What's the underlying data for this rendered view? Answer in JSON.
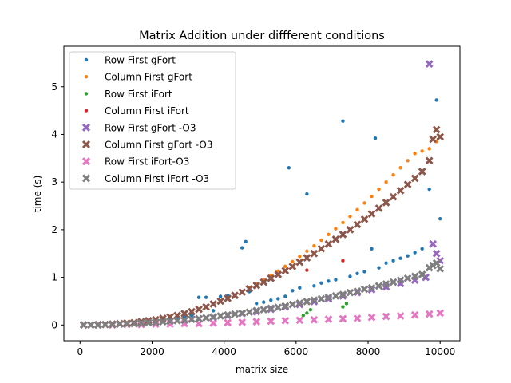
{
  "chart_data": {
    "type": "scatter",
    "title": "Matrix Addition under diffferent conditions",
    "xlabel": "matrix size",
    "ylabel": "time (s)",
    "xlim": [
      -450,
      10550
    ],
    "ylim": [
      -0.33,
      5.85
    ],
    "xticks": [
      0,
      2000,
      4000,
      6000,
      8000,
      10000
    ],
    "yticks": [
      0,
      1,
      2,
      3,
      4,
      5
    ],
    "grid": false,
    "legend_position": "top-left",
    "series": [
      {
        "name": "Row First gFort",
        "color": "#1f77b4",
        "marker": "dot",
        "x": [
          100,
          300,
          500,
          700,
          900,
          1100,
          1300,
          1500,
          1700,
          1900,
          2100,
          2300,
          2500,
          2700,
          2900,
          3100,
          3300,
          3500,
          3700,
          3900,
          4100,
          4300,
          4500,
          4600,
          4700,
          4900,
          5100,
          5300,
          5500,
          5700,
          5800,
          5900,
          6100,
          6300,
          6500,
          6700,
          6900,
          7100,
          7300,
          7500,
          7700,
          7900,
          8100,
          8200,
          8300,
          8500,
          8700,
          8900,
          9100,
          9300,
          9500,
          9700,
          9900,
          10000
        ],
        "y": [
          0.0,
          0.0,
          0.0,
          0.01,
          0.01,
          0.02,
          0.03,
          0.04,
          0.05,
          0.06,
          0.08,
          0.1,
          0.12,
          0.14,
          0.17,
          0.2,
          0.58,
          0.58,
          0.3,
          0.6,
          0.62,
          0.63,
          1.62,
          1.75,
          0.7,
          0.45,
          0.48,
          0.52,
          0.55,
          0.6,
          3.3,
          0.72,
          0.78,
          2.75,
          0.82,
          0.88,
          0.92,
          0.95,
          4.28,
          1.02,
          1.08,
          1.12,
          1.6,
          3.92,
          1.2,
          1.3,
          1.35,
          1.4,
          1.45,
          1.52,
          1.6,
          2.85,
          4.72,
          2.23
        ]
      },
      {
        "name": "Column First gFort",
        "color": "#ff7f0e",
        "marker": "dot",
        "x": [
          100,
          300,
          500,
          700,
          900,
          1100,
          1300,
          1500,
          1700,
          1900,
          2100,
          2300,
          2500,
          2700,
          2900,
          3100,
          3300,
          3500,
          3700,
          3900,
          4100,
          4300,
          4500,
          4700,
          4900,
          5100,
          5300,
          5500,
          5700,
          5900,
          6100,
          6300,
          6500,
          6700,
          6900,
          7100,
          7300,
          7500,
          7700,
          7900,
          8100,
          8300,
          8500,
          8700,
          8900,
          9100,
          9300,
          9500,
          9700,
          9900
        ],
        "y": [
          0.0,
          0.0,
          0.01,
          0.01,
          0.02,
          0.03,
          0.04,
          0.05,
          0.07,
          0.09,
          0.11,
          0.14,
          0.17,
          0.2,
          0.24,
          0.28,
          0.33,
          0.38,
          0.44,
          0.5,
          0.56,
          0.62,
          0.7,
          0.78,
          0.86,
          0.95,
          1.04,
          1.13,
          1.23,
          1.33,
          1.44,
          1.55,
          1.66,
          1.78,
          1.9,
          2.02,
          2.15,
          2.28,
          2.42,
          2.56,
          2.7,
          2.85,
          3.0,
          3.15,
          3.3,
          3.45,
          3.6,
          3.65,
          3.7,
          3.85
        ]
      },
      {
        "name": "Row First iFort",
        "color": "#2ca02c",
        "marker": "dot",
        "x": [
          6200,
          6300,
          6400,
          7300,
          7400
        ],
        "y": [
          0.2,
          0.25,
          0.32,
          0.38,
          0.45
        ]
      },
      {
        "name": "Column First iFort",
        "color": "#d62728",
        "marker": "dot",
        "x": [
          6300,
          7300
        ],
        "y": [
          1.15,
          1.35
        ]
      },
      {
        "name": "Row First gFort -O3",
        "color": "#9467bd",
        "marker": "x",
        "x": [
          100,
          500,
          900,
          1300,
          1700,
          2100,
          2500,
          2900,
          3300,
          3700,
          4100,
          4500,
          4900,
          5300,
          5700,
          6100,
          6500,
          6900,
          7300,
          7700,
          8100,
          8500,
          8900,
          9300,
          9600,
          9700,
          9800,
          9900,
          10000
        ],
        "y": [
          0.0,
          0.0,
          0.01,
          0.02,
          0.04,
          0.06,
          0.08,
          0.1,
          0.13,
          0.16,
          0.2,
          0.24,
          0.28,
          0.33,
          0.38,
          0.43,
          0.49,
          0.55,
          0.61,
          0.68,
          0.74,
          0.8,
          0.87,
          0.94,
          1.0,
          5.48,
          1.7,
          1.5,
          1.35
        ]
      },
      {
        "name": "Column First gFort -O3",
        "color": "#8c564b",
        "marker": "x",
        "x": [
          100,
          300,
          500,
          700,
          900,
          1100,
          1300,
          1500,
          1700,
          1900,
          2100,
          2300,
          2500,
          2700,
          2900,
          3100,
          3300,
          3500,
          3700,
          3900,
          4100,
          4300,
          4500,
          4700,
          4900,
          5100,
          5300,
          5500,
          5700,
          5900,
          6100,
          6300,
          6500,
          6700,
          6900,
          7100,
          7300,
          7500,
          7700,
          7900,
          8100,
          8300,
          8500,
          8700,
          8900,
          9100,
          9300,
          9500,
          9700,
          9800,
          9900,
          10000
        ],
        "y": [
          0.0,
          0.0,
          0.01,
          0.01,
          0.02,
          0.03,
          0.04,
          0.05,
          0.07,
          0.09,
          0.11,
          0.14,
          0.17,
          0.2,
          0.24,
          0.28,
          0.33,
          0.38,
          0.44,
          0.5,
          0.56,
          0.62,
          0.69,
          0.76,
          0.83,
          0.9,
          0.98,
          1.06,
          1.14,
          1.23,
          1.32,
          1.41,
          1.5,
          1.6,
          1.7,
          1.8,
          1.9,
          2.0,
          2.11,
          2.22,
          2.33,
          2.45,
          2.57,
          2.69,
          2.82,
          2.95,
          3.08,
          3.22,
          3.45,
          3.9,
          4.1,
          3.95
        ]
      },
      {
        "name": "Row First iFort-O3",
        "color": "#e377c2",
        "marker": "x",
        "x": [
          100,
          500,
          900,
          1300,
          1700,
          2100,
          2500,
          2900,
          3300,
          3700,
          4100,
          4500,
          4900,
          5300,
          5700,
          6100,
          6500,
          6900,
          7300,
          7700,
          8100,
          8500,
          8900,
          9300,
          9700,
          10000
        ],
        "y": [
          0.0,
          0.0,
          0.0,
          0.01,
          0.01,
          0.02,
          0.02,
          0.03,
          0.03,
          0.04,
          0.05,
          0.06,
          0.07,
          0.08,
          0.09,
          0.1,
          0.11,
          0.12,
          0.13,
          0.14,
          0.16,
          0.18,
          0.19,
          0.21,
          0.23,
          0.25
        ]
      },
      {
        "name": "Column First iFort -O3",
        "color": "#7f7f7f",
        "marker": "x",
        "x": [
          100,
          300,
          500,
          700,
          900,
          1100,
          1300,
          1500,
          1700,
          1900,
          2100,
          2300,
          2500,
          2700,
          2900,
          3100,
          3300,
          3500,
          3700,
          3900,
          4100,
          4300,
          4500,
          4700,
          4900,
          5100,
          5300,
          5500,
          5700,
          5900,
          6100,
          6300,
          6500,
          6700,
          6900,
          7100,
          7300,
          7500,
          7700,
          7900,
          8100,
          8300,
          8500,
          8700,
          8900,
          9100,
          9300,
          9500,
          9700,
          9800,
          9900,
          10000
        ],
        "y": [
          0.0,
          0.0,
          0.0,
          0.01,
          0.01,
          0.02,
          0.02,
          0.03,
          0.04,
          0.05,
          0.06,
          0.07,
          0.08,
          0.09,
          0.1,
          0.12,
          0.13,
          0.15,
          0.17,
          0.19,
          0.21,
          0.23,
          0.25,
          0.27,
          0.3,
          0.32,
          0.35,
          0.37,
          0.4,
          0.43,
          0.46,
          0.49,
          0.52,
          0.55,
          0.58,
          0.61,
          0.64,
          0.68,
          0.71,
          0.75,
          0.78,
          0.82,
          0.86,
          0.9,
          0.94,
          0.98,
          1.02,
          1.06,
          1.2,
          1.25,
          1.3,
          1.18
        ]
      }
    ]
  }
}
